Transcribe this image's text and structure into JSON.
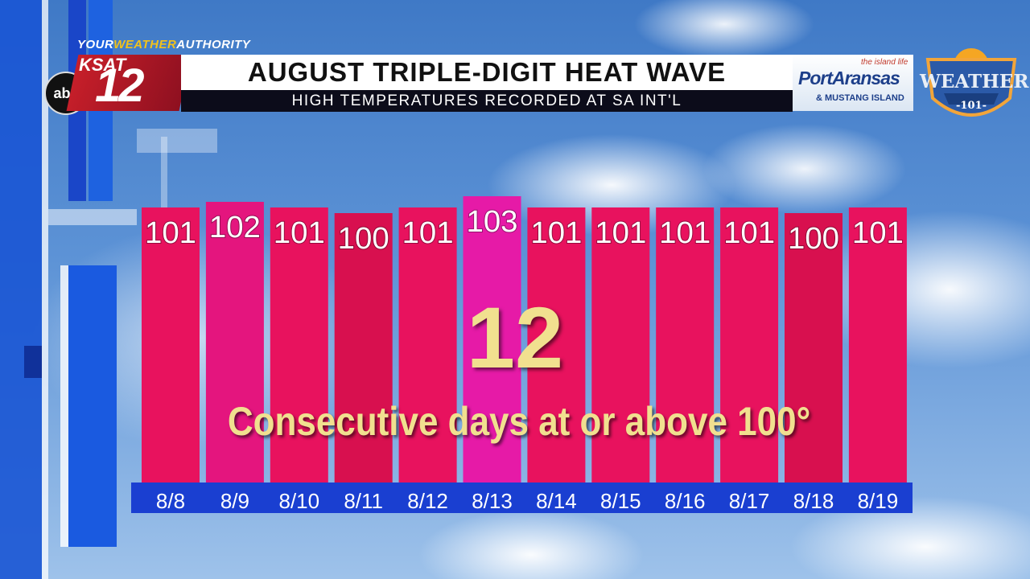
{
  "header": {
    "authority_prefix": "YOUR",
    "authority_weather": "WEATHER",
    "authority_suffix": "AUTHORITY",
    "network": "abc",
    "station": "KSAT",
    "channel": "12",
    "title": "AUGUST TRIPLE-DIGIT HEAT WAVE",
    "subtitle": "HIGH TEMPERATURES RECORDED AT SA INT'L"
  },
  "sponsor": {
    "name": "PortAransas",
    "sub": "& MUSTANG ISLAND",
    "tagline": "the island life"
  },
  "badge": {
    "name": "WEATHER",
    "number": "-101-"
  },
  "highlight": {
    "number": "12",
    "caption": "Consecutive days at or above 100°"
  },
  "colors": {
    "bar_pink": "#e8125e",
    "bar_magenta": "#e4157e",
    "bar_hot": "#e61aa7",
    "bar_deep": "#d8104f",
    "axis_blue": "#1a3fd1",
    "highlight_gold": "#f1e08f"
  },
  "chart_data": {
    "type": "bar",
    "categories": [
      "8/8",
      "8/9",
      "8/10",
      "8/11",
      "8/12",
      "8/13",
      "8/14",
      "8/15",
      "8/16",
      "8/17",
      "8/18",
      "8/19"
    ],
    "values": [
      101,
      102,
      101,
      100,
      101,
      103,
      101,
      101,
      101,
      101,
      100,
      101
    ],
    "title": "AUGUST TRIPLE-DIGIT HEAT WAVE",
    "xlabel": "",
    "ylabel": "",
    "grid": false,
    "legend": "none"
  }
}
